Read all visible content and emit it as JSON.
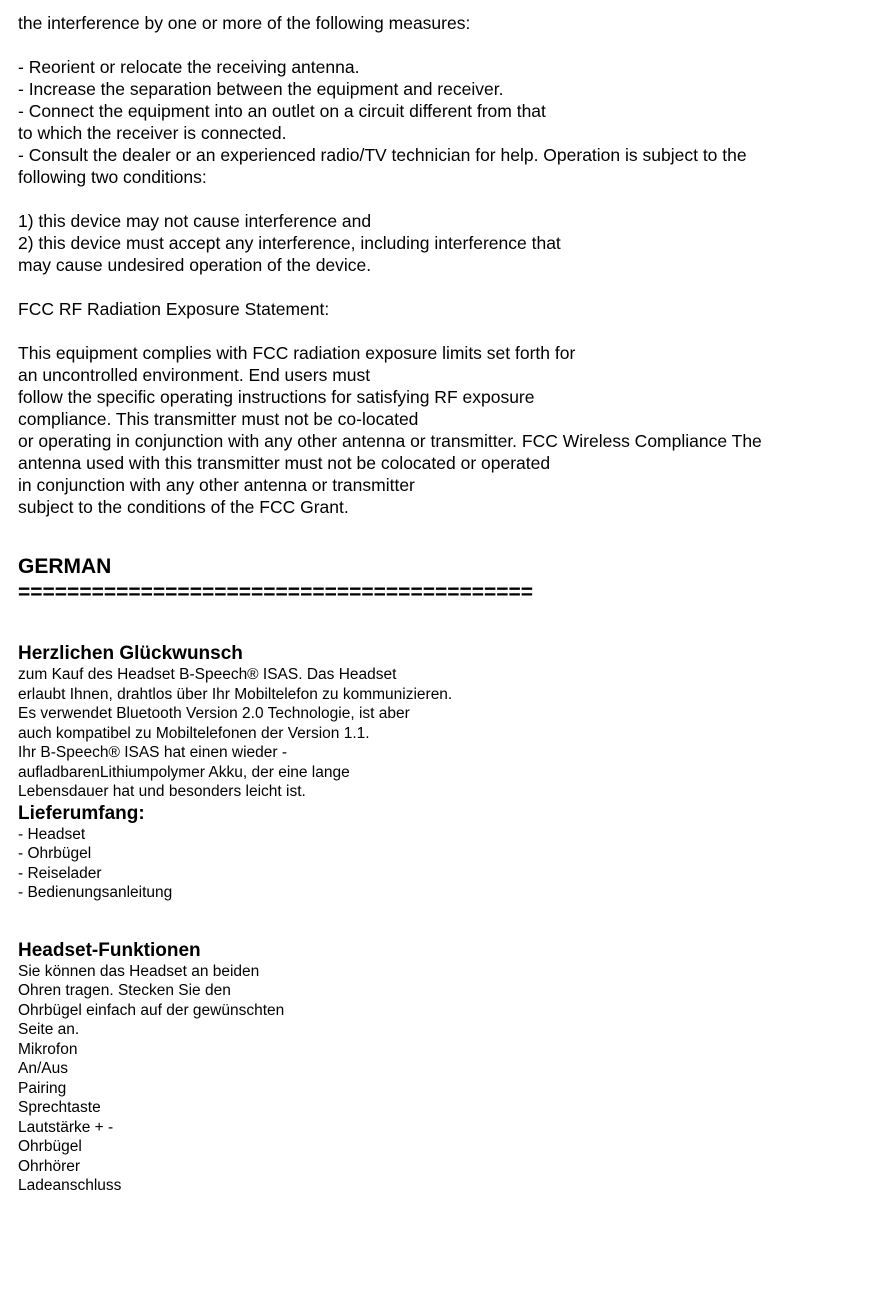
{
  "doc": {
    "p1": "the interference by one or more of the following measures:",
    "p2": "- Reorient or relocate the receiving antenna.",
    "p3": "- Increase the separation between the equipment and receiver.",
    "p4": "- Connect the equipment into an outlet on a circuit different from that",
    "p5": "to which the receiver is connected.",
    "p6": "- Consult the dealer or an experienced radio/TV technician for help. Operation is subject to the",
    "p7": "following two conditions:",
    "p8": "1) this device may not cause interference and",
    "p9": "2) this device must accept any interference, including interference that",
    "p10": "may cause undesired operation of the device.",
    "p11": "FCC RF Radiation Exposure Statement:",
    "p12": "This equipment complies with FCC radiation exposure limits set forth for",
    "p13": "an uncontrolled environment. End users must",
    "p14": "follow the specific operating instructions for satisfying RF exposure",
    "p15": "compliance. This transmitter must not be co-located",
    "p16": "or operating in conjunction with any other antenna or transmitter. FCC Wireless Compliance The",
    "p17": "antenna used with this transmitter must not be colocated or operated",
    "p18": "in conjunction with any other antenna or transmitter",
    "p19": "subject to the conditions of the FCC Grant.",
    "german_heading": "GERMAN",
    "divider": "==========================================",
    "g_h1": "Herzlichen Glückwunsch",
    "g1": "zum Kauf des Headset B-Speech® ISAS. Das Headset",
    "g2": "erlaubt Ihnen, drahtlos über Ihr Mobiltelefon zu kommunizieren.",
    "g3": "Es verwendet Bluetooth Version 2.0 Technologie, ist aber",
    "g4": "auch kompatibel zu Mobiltelefonen der Version 1.1.",
    "g5": "Ihr B-Speech® ISAS hat einen wieder -",
    "g6": "aufladbarenLithiumpolymer Akku, der eine lange",
    "g7": "Lebensdauer hat und besonders leicht ist.",
    "g_h2": "Lieferumfang:",
    "g8": "- Headset",
    "g9": "- Ohrbügel",
    "g10": "- Reiselader",
    "g11": "- Bedienungsanleitung",
    "g_h3": "Headset-Funktionen",
    "g12": "Sie können das Headset an beiden",
    "g13": "Ohren tragen. Stecken Sie den",
    "g14": "Ohrbügel einfach auf der gewünschten",
    "g15": "Seite an.",
    "g16": "Mikrofon",
    "g17": "An/Aus",
    "g18": "Pairing",
    "g19": "Sprechtaste",
    "g20": "Lautstärke + -",
    "g21": "Ohrbügel",
    "g22": "Ohrhörer",
    "g23": "Ladeanschluss"
  }
}
